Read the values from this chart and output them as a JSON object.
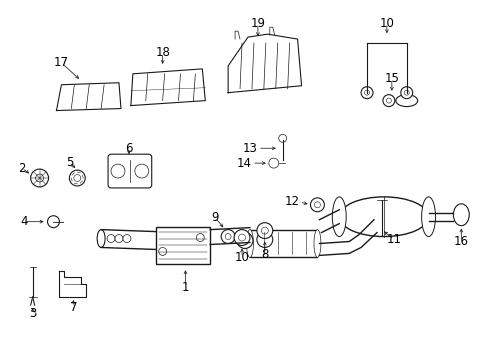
{
  "background_color": "#ffffff",
  "line_color": "#1a1a1a",
  "text_color": "#000000",
  "figsize": [
    4.89,
    3.6
  ],
  "dpi": 100,
  "num_fontsize": 8.5
}
